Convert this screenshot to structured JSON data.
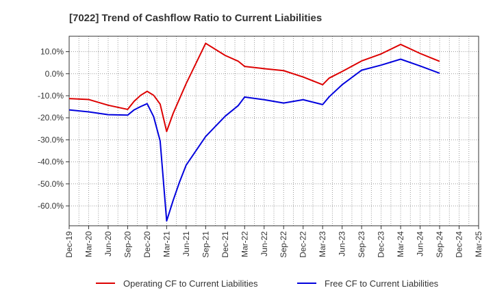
{
  "chart_data": {
    "type": "line",
    "title": "[7022]  Trend of Cashflow Ratio to Current Liabilities",
    "xlabel": "",
    "ylabel": "",
    "x_ticks": [
      "Dec-19",
      "Mar-20",
      "Jun-20",
      "Sep-20",
      "Dec-20",
      "Mar-21",
      "Jun-21",
      "Sep-21",
      "Dec-21",
      "Mar-22",
      "Jun-22",
      "Sep-22",
      "Dec-22",
      "Mar-23",
      "Jun-23",
      "Sep-23",
      "Dec-23",
      "Mar-24",
      "Jun-24",
      "Sep-24",
      "Dec-24",
      "Mar-25"
    ],
    "y_ticks": [
      "10.0%",
      "0.0%",
      "-10.0%",
      "-20.0%",
      "-30.0%",
      "-40.0%",
      "-50.0%",
      "-60.0%"
    ],
    "y_tick_values": [
      10,
      0,
      -10,
      -20,
      -30,
      -40,
      -50,
      -60
    ],
    "ylim": [
      -69,
      17
    ],
    "grid": true,
    "legend_position": "bottom",
    "series": [
      {
        "name": "Operating CF to Current Liabilities",
        "color": "#dd0000",
        "points": [
          [
            "Dec-19",
            -11.3
          ],
          [
            "Mar-20",
            -11.7
          ],
          [
            "Jun-20",
            -14.3
          ],
          [
            "Sep-20",
            -16.2
          ],
          [
            "Oct-20",
            -12.5
          ],
          [
            "Nov-20",
            -9.8
          ],
          [
            "Dec-20",
            -8.0
          ],
          [
            "Jan-21",
            -9.8
          ],
          [
            "Feb-21",
            -13.8
          ],
          [
            "Mar-21",
            -26.2
          ],
          [
            "Apr-21",
            -18.0
          ],
          [
            "Jun-21",
            -4.5
          ],
          [
            "Sep-21",
            13.8
          ],
          [
            "Dec-21",
            8.3
          ],
          [
            "Feb-22",
            5.7
          ],
          [
            "Mar-22",
            3.3
          ],
          [
            "Jun-22",
            2.3
          ],
          [
            "Sep-22",
            1.4
          ],
          [
            "Dec-22",
            -1.5
          ],
          [
            "Mar-23",
            -5.0
          ],
          [
            "Apr-23",
            -2.0
          ],
          [
            "Jun-23",
            1.0
          ],
          [
            "Sep-23",
            5.8
          ],
          [
            "Dec-23",
            9.0
          ],
          [
            "Mar-24",
            13.3
          ],
          [
            "Jun-24",
            9.2
          ],
          [
            "Sep-24",
            5.6
          ]
        ]
      },
      {
        "name": "Free CF to Current Liabilities",
        "color": "#0000dd",
        "points": [
          [
            "Dec-19",
            -16.4
          ],
          [
            "Mar-20",
            -17.3
          ],
          [
            "Jun-20",
            -18.6
          ],
          [
            "Sep-20",
            -18.8
          ],
          [
            "Oct-20",
            -16.4
          ],
          [
            "Nov-20",
            -14.9
          ],
          [
            "Dec-20",
            -13.6
          ],
          [
            "Jan-21",
            -19.5
          ],
          [
            "Feb-21",
            -30.5
          ],
          [
            "Mar-21",
            -66.8
          ],
          [
            "Apr-21",
            -57.5
          ],
          [
            "May-21",
            -49.0
          ],
          [
            "Jun-21",
            -41.5
          ],
          [
            "Sep-21",
            -28.5
          ],
          [
            "Dec-21",
            -19.3
          ],
          [
            "Feb-22",
            -14.5
          ],
          [
            "Mar-22",
            -10.6
          ],
          [
            "Jun-22",
            -11.8
          ],
          [
            "Sep-22",
            -13.3
          ],
          [
            "Dec-22",
            -11.8
          ],
          [
            "Mar-23",
            -14.0
          ],
          [
            "Apr-23",
            -10.5
          ],
          [
            "Jun-23",
            -5.0
          ],
          [
            "Sep-23",
            1.6
          ],
          [
            "Dec-23",
            3.9
          ],
          [
            "Mar-24",
            6.6
          ],
          [
            "Jun-24",
            3.5
          ],
          [
            "Sep-24",
            0.2
          ]
        ]
      }
    ]
  }
}
